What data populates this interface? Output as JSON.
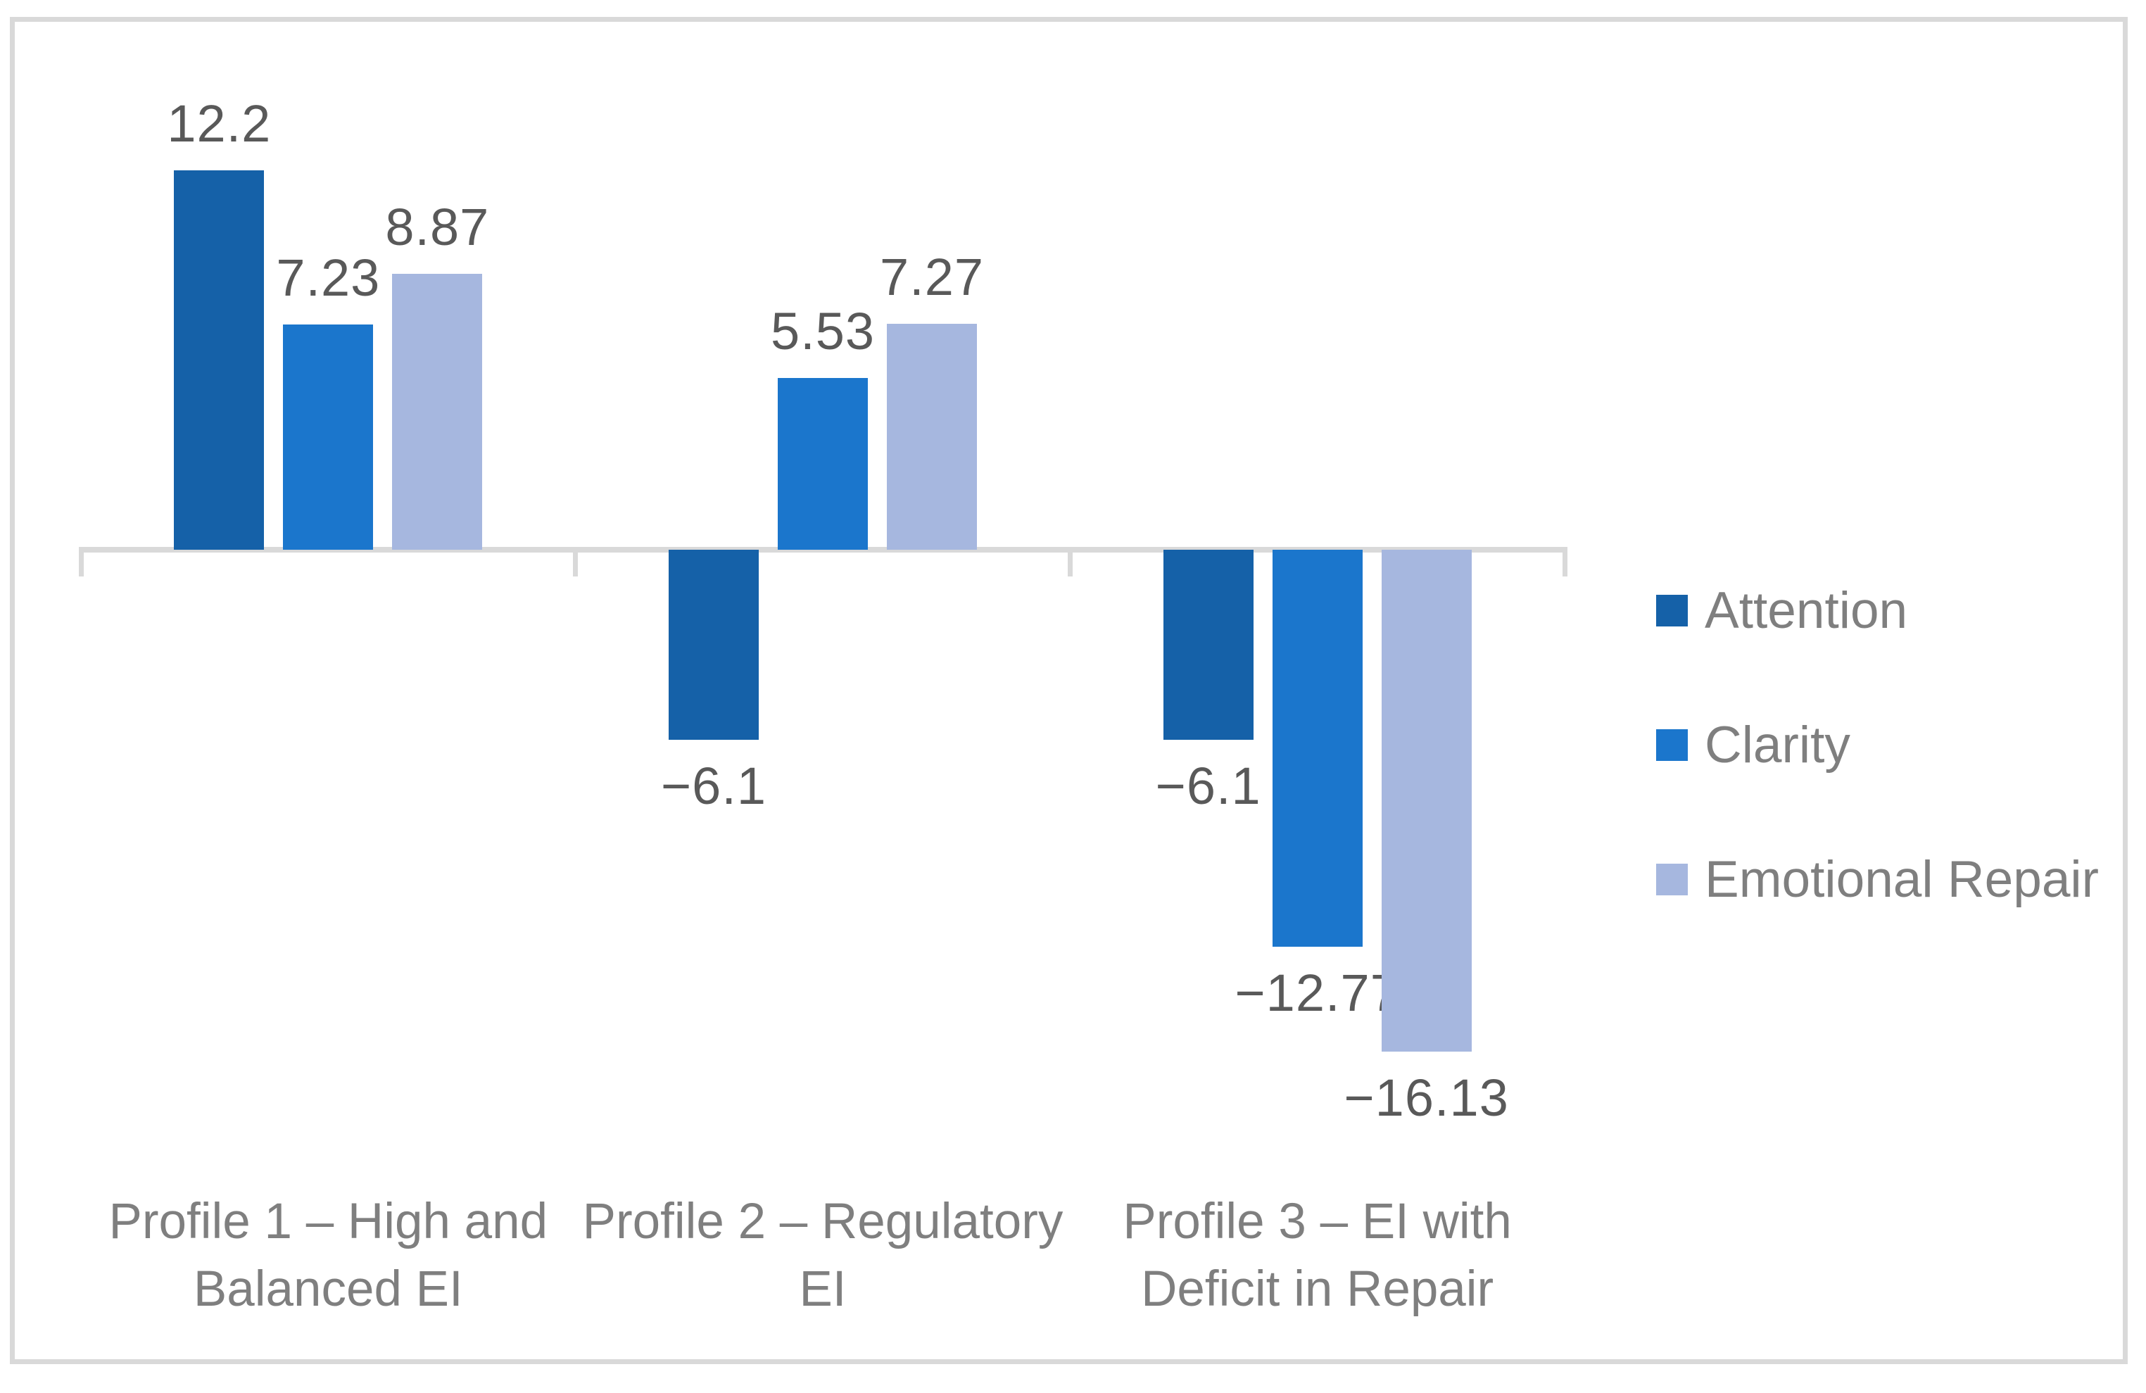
{
  "frame": {
    "border_color": "#D9D9D9",
    "background_color": "#FFFFFF"
  },
  "chart_data": {
    "type": "bar",
    "title": "",
    "xlabel": "",
    "ylabel": "",
    "categories": [
      "Profile 1 – High and Balanced EI",
      "Profile 2 – Regulatory EI",
      "Profile 3 – EI with Deficit in Repair"
    ],
    "category_lines": [
      [
        "Profile 1 – High and",
        "Balanced EI"
      ],
      [
        "Profile 2 – Regulatory",
        "EI"
      ],
      [
        "Profile 3 – EI with",
        "Deficit in Repair"
      ]
    ],
    "series": [
      {
        "name": "Attention",
        "color": "#1561A8",
        "values": [
          12.2,
          -6.1,
          -6.1
        ],
        "data_labels": [
          "12.2",
          "−6.1",
          "−6.1"
        ]
      },
      {
        "name": "Clarity",
        "color": "#1B76CC",
        "values": [
          7.23,
          5.53,
          -12.77
        ],
        "data_labels": [
          "7.23",
          "5.53",
          "−12.77"
        ]
      },
      {
        "name": "Emotional Repair",
        "color": "#A6B7DF",
        "values": [
          8.87,
          7.27,
          -16.13
        ],
        "data_labels": [
          "8.87",
          "7.27",
          "−16.13"
        ]
      }
    ],
    "ylim": [
      -16.13,
      12.2
    ],
    "grid": false,
    "axis_ticks_visible": true,
    "legend_position": "middle-right",
    "axis_color": "#D9D9D9",
    "value_label_color": "#595959",
    "category_label_color": "#7F7F7F",
    "legend_text_color": "#7F7F7F"
  }
}
